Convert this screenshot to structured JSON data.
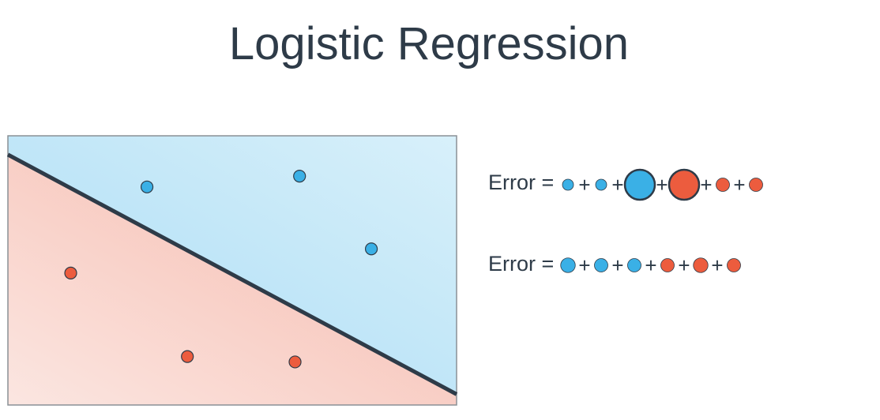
{
  "title": "Logistic Regression",
  "colors": {
    "text": "#2e3b48",
    "blue_point": "#3ab0e6",
    "red_point": "#ec5c3e",
    "blue_region_dark": "#a9dcf5",
    "blue_region_light": "#d8f0fa",
    "red_region_dark": "#f6b7aa",
    "red_region_light": "#fbe6e1",
    "boundary": "#2e3b48",
    "frame": "#8a9096"
  },
  "diagram": {
    "points": [
      {
        "class": "blue",
        "x": 0.31,
        "y": 0.81
      },
      {
        "class": "blue",
        "x": 0.65,
        "y": 0.85
      },
      {
        "class": "blue",
        "x": 0.81,
        "y": 0.58
      },
      {
        "class": "red",
        "x": 0.14,
        "y": 0.49
      },
      {
        "class": "red",
        "x": 0.4,
        "y": 0.18
      },
      {
        "class": "red",
        "x": 0.64,
        "y": 0.16
      }
    ],
    "boundary": {
      "from": [
        0,
        0.93
      ],
      "to": [
        1,
        0.04
      ]
    }
  },
  "equations": [
    {
      "label": "Error =",
      "terms": [
        {
          "class": "blue",
          "magnitude": 0.2
        },
        {
          "class": "blue",
          "magnitude": 0.2
        },
        {
          "class": "blue",
          "magnitude": 1.0
        },
        {
          "class": "red",
          "magnitude": 1.0
        },
        {
          "class": "red",
          "magnitude": 0.3
        },
        {
          "class": "red",
          "magnitude": 0.3
        }
      ],
      "separator": "+"
    },
    {
      "label": "Error =",
      "terms": [
        {
          "class": "blue",
          "magnitude": 0.35
        },
        {
          "class": "blue",
          "magnitude": 0.3
        },
        {
          "class": "blue",
          "magnitude": 0.3
        },
        {
          "class": "red",
          "magnitude": 0.3
        },
        {
          "class": "red",
          "magnitude": 0.35
        },
        {
          "class": "red",
          "magnitude": 0.3
        }
      ],
      "separator": "+"
    }
  ]
}
